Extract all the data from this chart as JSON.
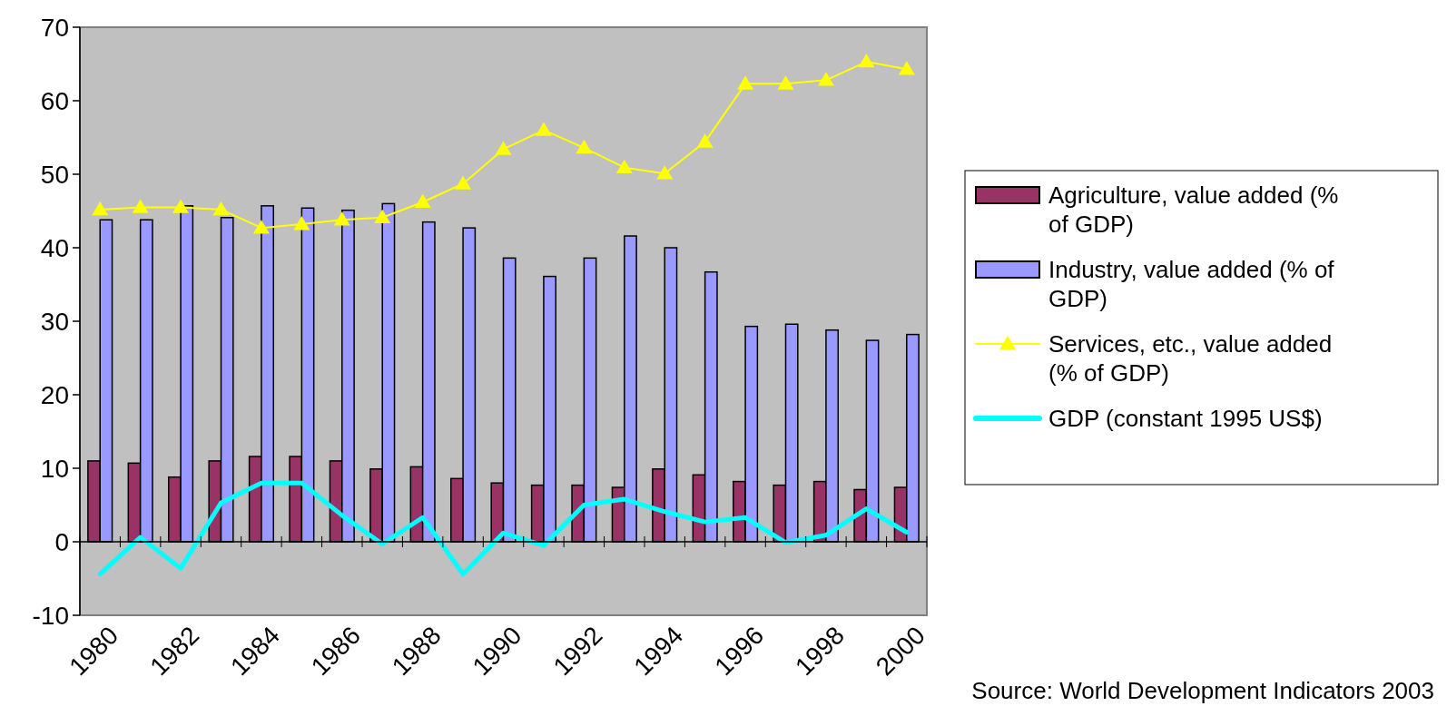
{
  "chart_data": {
    "type": "bar",
    "categories": [
      "1980",
      null,
      "1982",
      null,
      "1984",
      null,
      "1986",
      null,
      "1988",
      null,
      "1990",
      null,
      "1992",
      null,
      "1994",
      null,
      "1996",
      null,
      "1998",
      null,
      "2000"
    ],
    "series": [
      {
        "name": "Agriculture, value added (% of GDP)",
        "color": "#993366",
        "values": [
          11.0,
          10.7,
          8.8,
          11.0,
          11.6,
          11.6,
          11.0,
          9.9,
          10.2,
          8.6,
          8.0,
          7.7,
          7.7,
          7.4,
          9.9,
          9.1,
          8.2,
          7.7,
          8.2,
          7.1,
          7.4
        ]
      },
      {
        "name": "Industry, value added (% of GDP)",
        "color": "#9999ff",
        "values": [
          43.8,
          43.8,
          45.7,
          44.1,
          45.7,
          45.4,
          45.1,
          46.0,
          43.5,
          42.7,
          38.6,
          36.1,
          38.6,
          41.6,
          40.0,
          36.7,
          29.3,
          29.6,
          28.8,
          27.4,
          28.2
        ]
      },
      {
        "name": "Services, etc., value added (% of GDP)",
        "type": "line",
        "color": "#ffff00",
        "marker": "triangle",
        "values": [
          45.2,
          45.5,
          45.5,
          45.2,
          42.7,
          43.2,
          43.8,
          44.1,
          46.2,
          48.7,
          53.4,
          56.0,
          53.6,
          50.9,
          50.1,
          54.4,
          62.3,
          62.3,
          62.8,
          65.3,
          64.3
        ]
      },
      {
        "name": "GDP (constant 1995 US$)",
        "type": "line",
        "color": "#00ffff",
        "marker": "none",
        "values": [
          -4.4,
          0.6,
          -3.6,
          5.3,
          8.0,
          8.0,
          3.6,
          -0.3,
          3.3,
          -4.4,
          1.2,
          -0.5,
          5.0,
          5.8,
          4.1,
          2.7,
          3.3,
          -0.1,
          0.9,
          4.5,
          1.3
        ]
      }
    ],
    "ylim": [
      -10,
      70
    ],
    "yticks": [
      -10,
      0,
      10,
      20,
      30,
      40,
      50,
      60,
      70
    ],
    "legend": "right",
    "annotations": [
      "Source: World Development Indicators 2003"
    ]
  }
}
